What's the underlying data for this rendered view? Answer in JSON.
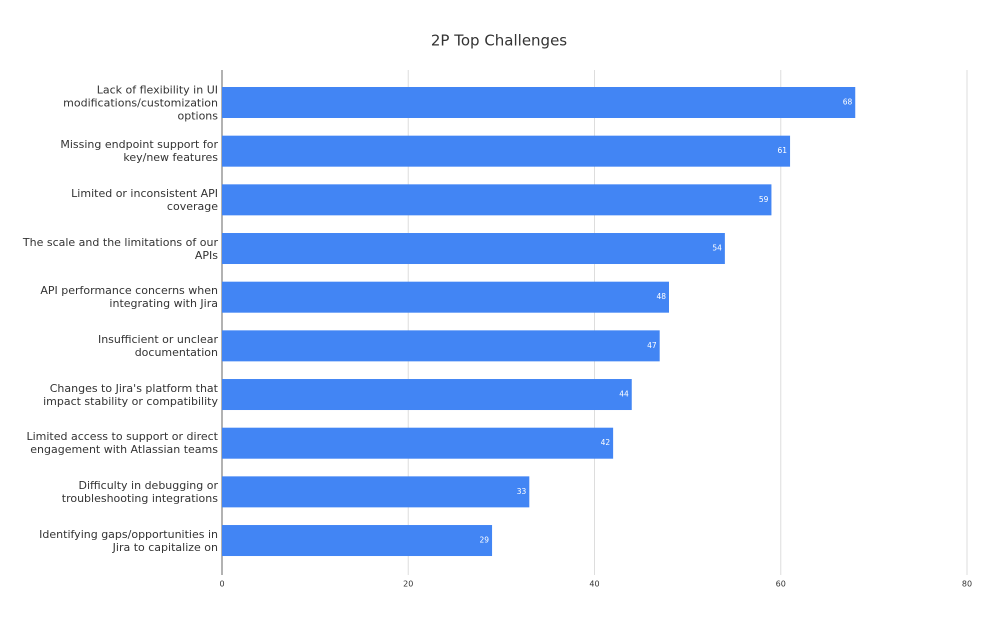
{
  "chart_data": {
    "type": "bar",
    "orientation": "horizontal",
    "title": "2P Top Challenges",
    "categories": [
      "Lack of flexibility in UI modifications/customization options",
      "Missing endpoint support for key/new features",
      "Limited or inconsistent API coverage",
      "The scale and the limitations of our APIs",
      "API performance concerns when integrating with Jira",
      "Insufficient or unclear documentation",
      "Changes to Jira's platform that impact stability or compatibility",
      "Limited access to support or direct engagement with Atlassian teams",
      "Difficulty in debugging or troubleshooting integrations",
      "Identifying gaps/opportunities in Jira to capitalize on"
    ],
    "values": [
      68,
      61,
      59,
      54,
      48,
      47,
      44,
      42,
      33,
      29
    ],
    "color": "#4285f4",
    "xlim": [
      0,
      80
    ],
    "xticks": [
      0,
      20,
      40,
      60,
      80
    ],
    "grid": true
  }
}
